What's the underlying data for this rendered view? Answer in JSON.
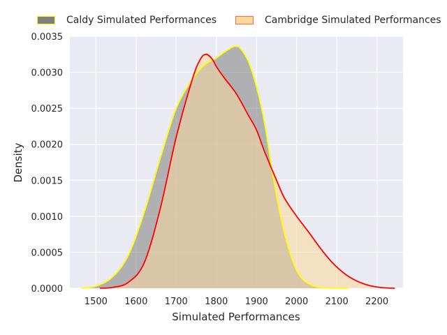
{
  "chart_data": {
    "type": "area",
    "xlabel": "Simulated Performances",
    "ylabel": "Density",
    "xlim": [
      1435,
      2265
    ],
    "ylim": [
      0,
      0.0035
    ],
    "x_ticks": [
      "1500",
      "1600",
      "1700",
      "1800",
      "1900",
      "2000",
      "2100",
      "2200"
    ],
    "y_ticks": [
      "0.0000",
      "0.0005",
      "0.0010",
      "0.0015",
      "0.0020",
      "0.0025",
      "0.0030",
      "0.0035"
    ],
    "grid": true,
    "legend_position": "top",
    "series": [
      {
        "name": "Caldy Simulated Performances",
        "fill_color": "#808080",
        "line_color": "#ffff00",
        "x": [
          1465,
          1500,
          1540,
          1580,
          1620,
          1660,
          1700,
          1740,
          1770,
          1800,
          1820,
          1840,
          1850,
          1860,
          1880,
          1900,
          1920,
          1940,
          1960,
          1980,
          2000,
          2020,
          2050,
          2090,
          2130
        ],
        "y": [
          0.0,
          3e-05,
          0.00015,
          0.00045,
          0.00105,
          0.0018,
          0.0025,
          0.0029,
          0.0031,
          0.0032,
          0.00328,
          0.00335,
          0.00336,
          0.00333,
          0.00315,
          0.0028,
          0.0023,
          0.0016,
          0.001,
          0.00055,
          0.00025,
          0.0001,
          2e-05,
          0.0,
          0.0
        ]
      },
      {
        "name": "Cambridge Simulated Performances",
        "fill_color": "#fbd79c",
        "line_color": "#ff0000",
        "x": [
          1510,
          1540,
          1580,
          1620,
          1660,
          1700,
          1740,
          1760,
          1775,
          1790,
          1800,
          1820,
          1850,
          1880,
          1900,
          1920,
          1950,
          1970,
          2000,
          2030,
          2060,
          2090,
          2120,
          2150,
          2180,
          2210,
          2245
        ],
        "y": [
          0.0,
          1e-05,
          8e-05,
          0.00035,
          0.0011,
          0.0021,
          0.0029,
          0.00318,
          0.00325,
          0.00318,
          0.00308,
          0.00292,
          0.0027,
          0.0024,
          0.0022,
          0.0019,
          0.0015,
          0.00125,
          0.001,
          0.00078,
          0.00055,
          0.00035,
          0.0002,
          0.0001,
          4e-05,
          1e-05,
          0.0
        ]
      }
    ]
  }
}
